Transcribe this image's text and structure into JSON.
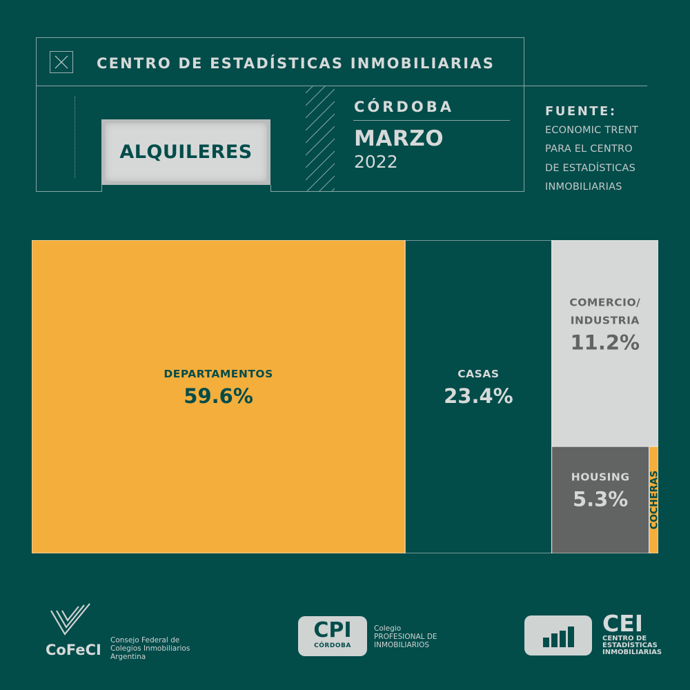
{
  "header": {
    "title": "CENTRO DE ESTADÍSTICAS INMOBILIARIAS",
    "tab_label": "ALQUILERES",
    "city": "CÓRDOBA",
    "month": "MARZO",
    "year": "2022",
    "source_label": "FUENTE:",
    "source_lines": [
      "ECONOMIC TRENT",
      "PARA EL CENTRO",
      "DE ESTADÍSTICAS",
      "INMOBILIARIAS"
    ]
  },
  "chart_data": {
    "type": "treemap",
    "items": [
      {
        "label": "DEPARTAMENTOS",
        "value": 59.6,
        "value_text": "59.6%",
        "color": "#f4ae3c",
        "text_color": "#024c4a"
      },
      {
        "label": "CASAS",
        "value": 23.4,
        "value_text": "23.4%",
        "color": "#024c4a",
        "text_color": "#d6dad9"
      },
      {
        "label": "COMERCIO/ INDUSTRIA",
        "lines": [
          "COMERCIO/",
          "INDUSTRIA"
        ],
        "value": 11.2,
        "value_text": "11.2%",
        "color": "#d6d8d8",
        "text_color": "#626463"
      },
      {
        "label": "HOUSING",
        "value": 5.3,
        "value_text": "5.3%",
        "color": "#626463",
        "text_color": "#d6d8d8"
      },
      {
        "label": "COCHERAS",
        "value": 0.5,
        "value_text": "",
        "color": "#f4ae3c",
        "text_color": "#024c4a"
      }
    ]
  },
  "footer": {
    "cofeci": {
      "name": "CoFeCI",
      "lines": [
        "Consejo Federal de",
        "Colegios Inmobiliarios",
        "Argentina"
      ]
    },
    "cpi": {
      "name": "CPI",
      "sub": "CÓRDOBA",
      "lines": [
        "Colegio",
        "PROFESIONAL DE",
        "INMOBILIARIOS"
      ]
    },
    "cei": {
      "name": "CEI",
      "lines": [
        "CENTRO DE",
        "ESTADÍSTICAS",
        "INMOBILIARIAS"
      ]
    }
  },
  "colors": {
    "background": "#024c4a",
    "accent": "#f4ae3c",
    "light": "#d6d8d8",
    "dark_gray": "#626463"
  }
}
